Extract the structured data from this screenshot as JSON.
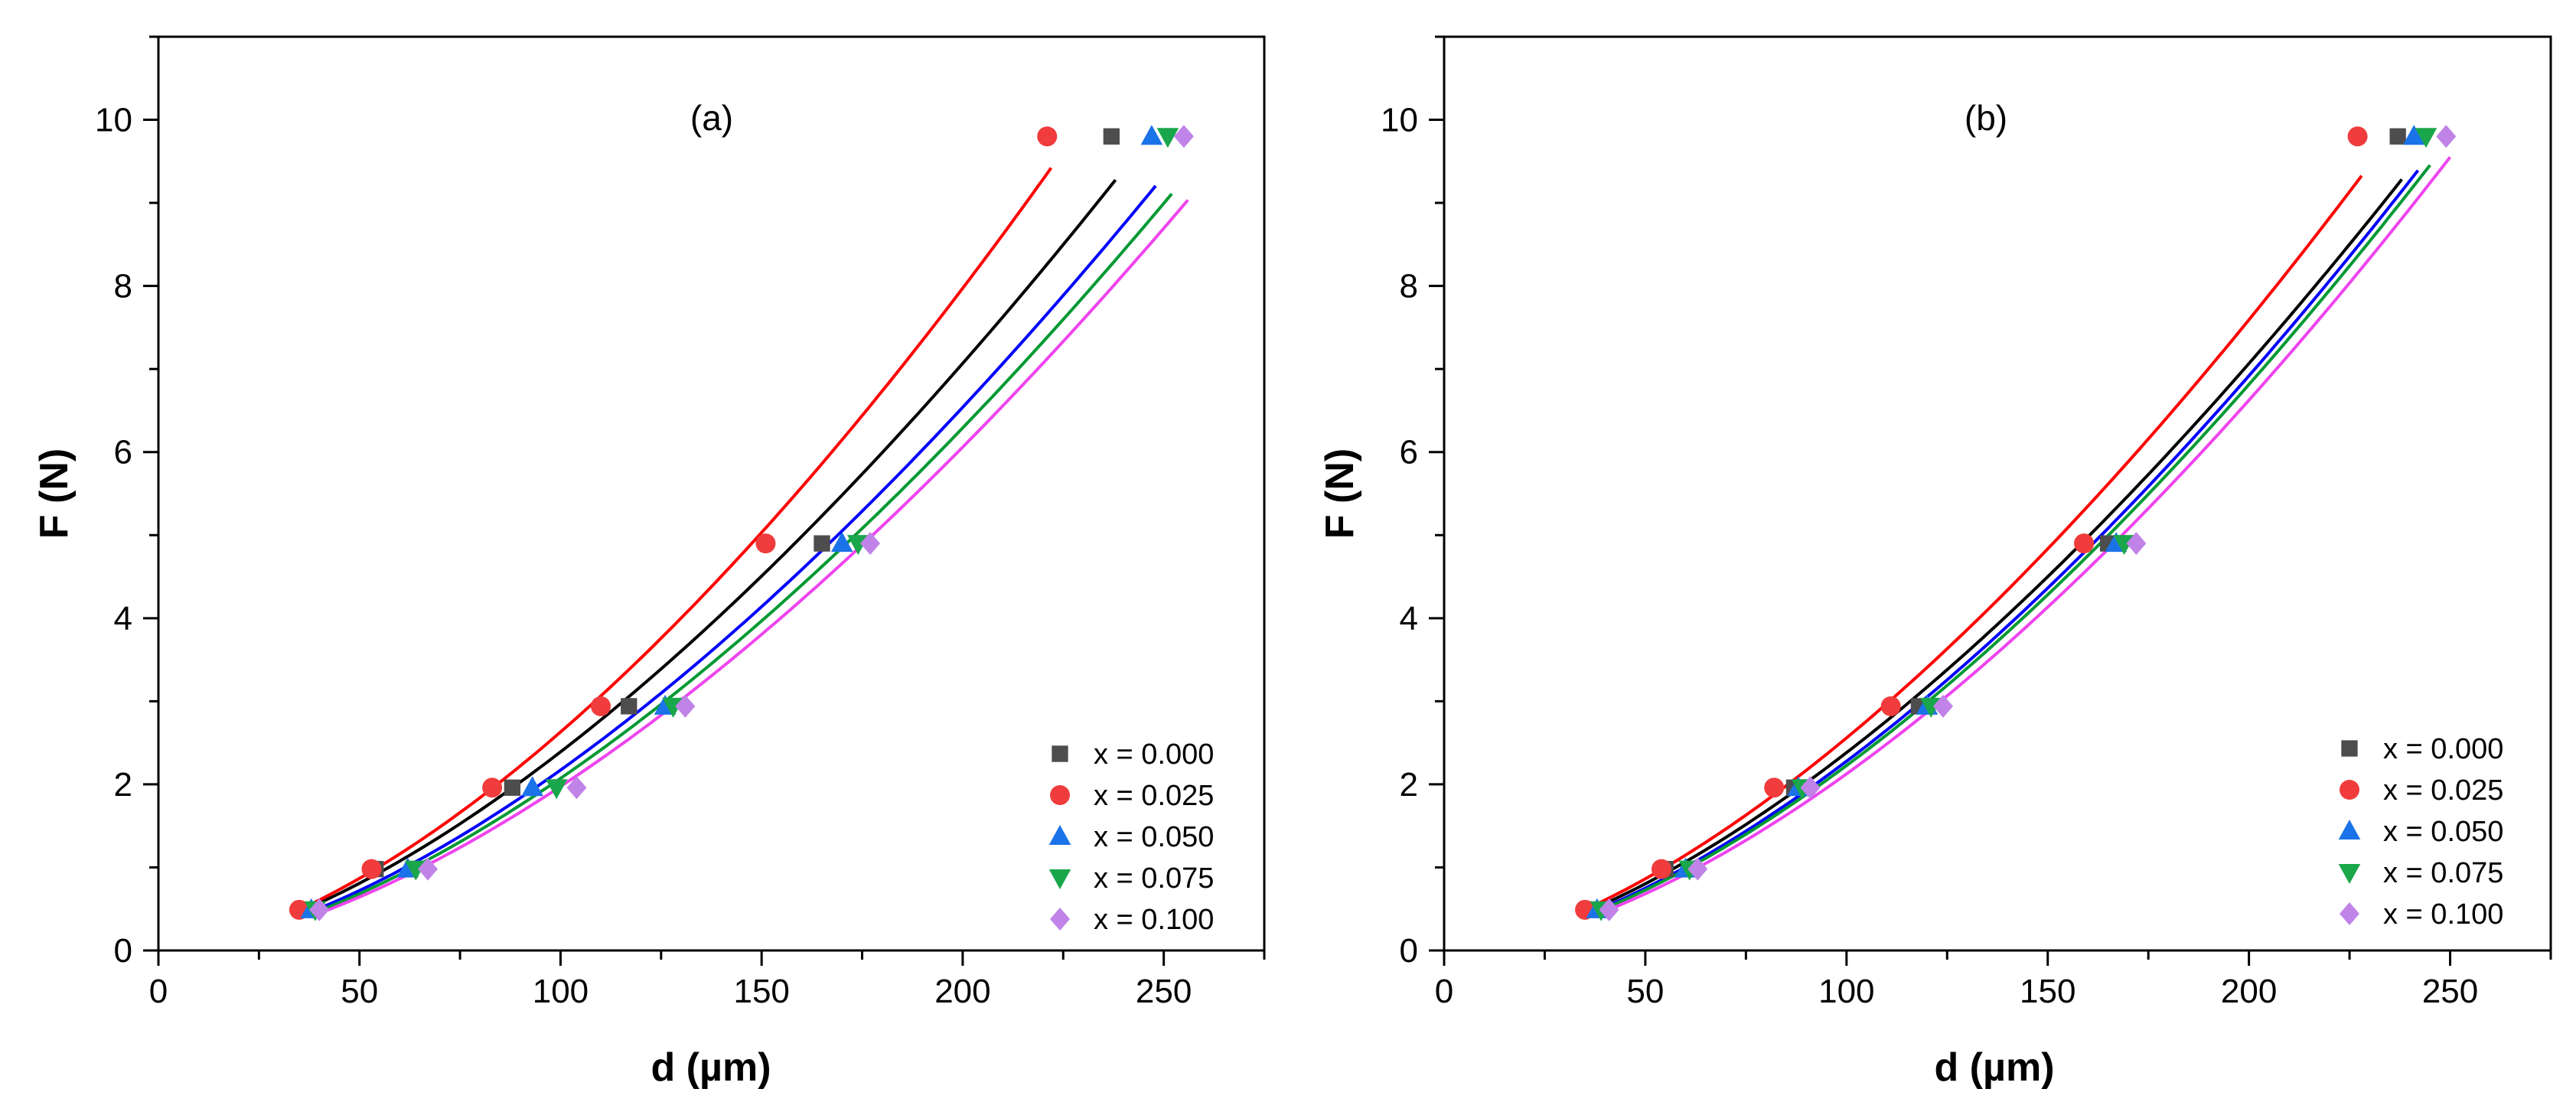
{
  "figure": {
    "description_labels": [
      "(a)",
      "(b)"
    ]
  },
  "chart_data": [
    {
      "type": "scatter",
      "panel_label": "(a)",
      "xlabel": "d (µm)",
      "ylabel": "F (N)",
      "xlim": [
        0,
        275
      ],
      "ylim": [
        0,
        11
      ],
      "xticks": [
        0,
        50,
        100,
        150,
        200,
        250
      ],
      "yticks": [
        0,
        2,
        4,
        6,
        8,
        10
      ],
      "legend_position": "bottom-right",
      "series": [
        {
          "name": "x = 0.000",
          "color": "#4d4d4d",
          "line_color": "#000000",
          "marker": "square",
          "x": [
            37,
            54,
            88,
            117,
            165,
            237
          ],
          "y": [
            0.49,
            0.98,
            1.96,
            2.94,
            4.9,
            9.8
          ]
        },
        {
          "name": "x = 0.025",
          "color": "#f03c3c",
          "line_color": "#ff0000",
          "marker": "circle",
          "x": [
            35,
            53,
            83,
            110,
            151,
            221
          ],
          "y": [
            0.49,
            0.98,
            1.96,
            2.94,
            4.9,
            9.8
          ]
        },
        {
          "name": "x = 0.050",
          "color": "#1a73e8",
          "line_color": "#0000ff",
          "marker": "triangle-up",
          "x": [
            38,
            62,
            93,
            126,
            170,
            247
          ],
          "y": [
            0.49,
            0.98,
            1.96,
            2.94,
            4.9,
            9.8
          ]
        },
        {
          "name": "x = 0.075",
          "color": "#1aa64a",
          "line_color": "#009933",
          "marker": "triangle-down",
          "x": [
            39,
            64,
            99,
            128,
            174,
            251
          ],
          "y": [
            0.49,
            0.98,
            1.96,
            2.94,
            4.9,
            9.8
          ]
        },
        {
          "name": "x = 0.100",
          "color": "#c084e8",
          "line_color": "#ee44ee",
          "marker": "diamond",
          "x": [
            40,
            67,
            104,
            131,
            177,
            255
          ],
          "y": [
            0.49,
            0.98,
            1.96,
            2.94,
            4.9,
            9.8
          ]
        }
      ]
    },
    {
      "type": "scatter",
      "panel_label": "(b)",
      "xlabel": "d (µm)",
      "ylabel": "F (N)",
      "xlim": [
        0,
        275
      ],
      "ylim": [
        0,
        11
      ],
      "xticks": [
        0,
        50,
        100,
        150,
        200,
        250
      ],
      "yticks": [
        0,
        2,
        4,
        6,
        8,
        10
      ],
      "legend_position": "bottom-right",
      "series": [
        {
          "name": "x = 0.000",
          "color": "#4d4d4d",
          "line_color": "#000000",
          "marker": "square",
          "x": [
            37,
            55,
            87,
            118,
            165,
            237
          ],
          "y": [
            0.49,
            0.98,
            1.96,
            2.94,
            4.9,
            9.8
          ]
        },
        {
          "name": "x = 0.025",
          "color": "#f03c3c",
          "line_color": "#ff0000",
          "marker": "circle",
          "x": [
            35,
            54,
            82,
            111,
            159,
            227
          ],
          "y": [
            0.49,
            0.98,
            1.96,
            2.94,
            4.9,
            9.8
          ]
        },
        {
          "name": "x = 0.050",
          "color": "#1a73e8",
          "line_color": "#0000ff",
          "marker": "triangle-up",
          "x": [
            38,
            60,
            88,
            120,
            167,
            241
          ],
          "y": [
            0.49,
            0.98,
            1.96,
            2.94,
            4.9,
            9.8
          ]
        },
        {
          "name": "x = 0.075",
          "color": "#1aa64a",
          "line_color": "#009933",
          "marker": "triangle-down",
          "x": [
            39,
            61,
            89,
            121,
            169,
            244
          ],
          "y": [
            0.49,
            0.98,
            1.96,
            2.94,
            4.9,
            9.8
          ]
        },
        {
          "name": "x = 0.100",
          "color": "#c084e8",
          "line_color": "#ee44ee",
          "marker": "diamond",
          "x": [
            41,
            63,
            91,
            124,
            172,
            249
          ],
          "y": [
            0.49,
            0.98,
            1.96,
            2.94,
            4.9,
            9.8
          ]
        }
      ]
    }
  ]
}
